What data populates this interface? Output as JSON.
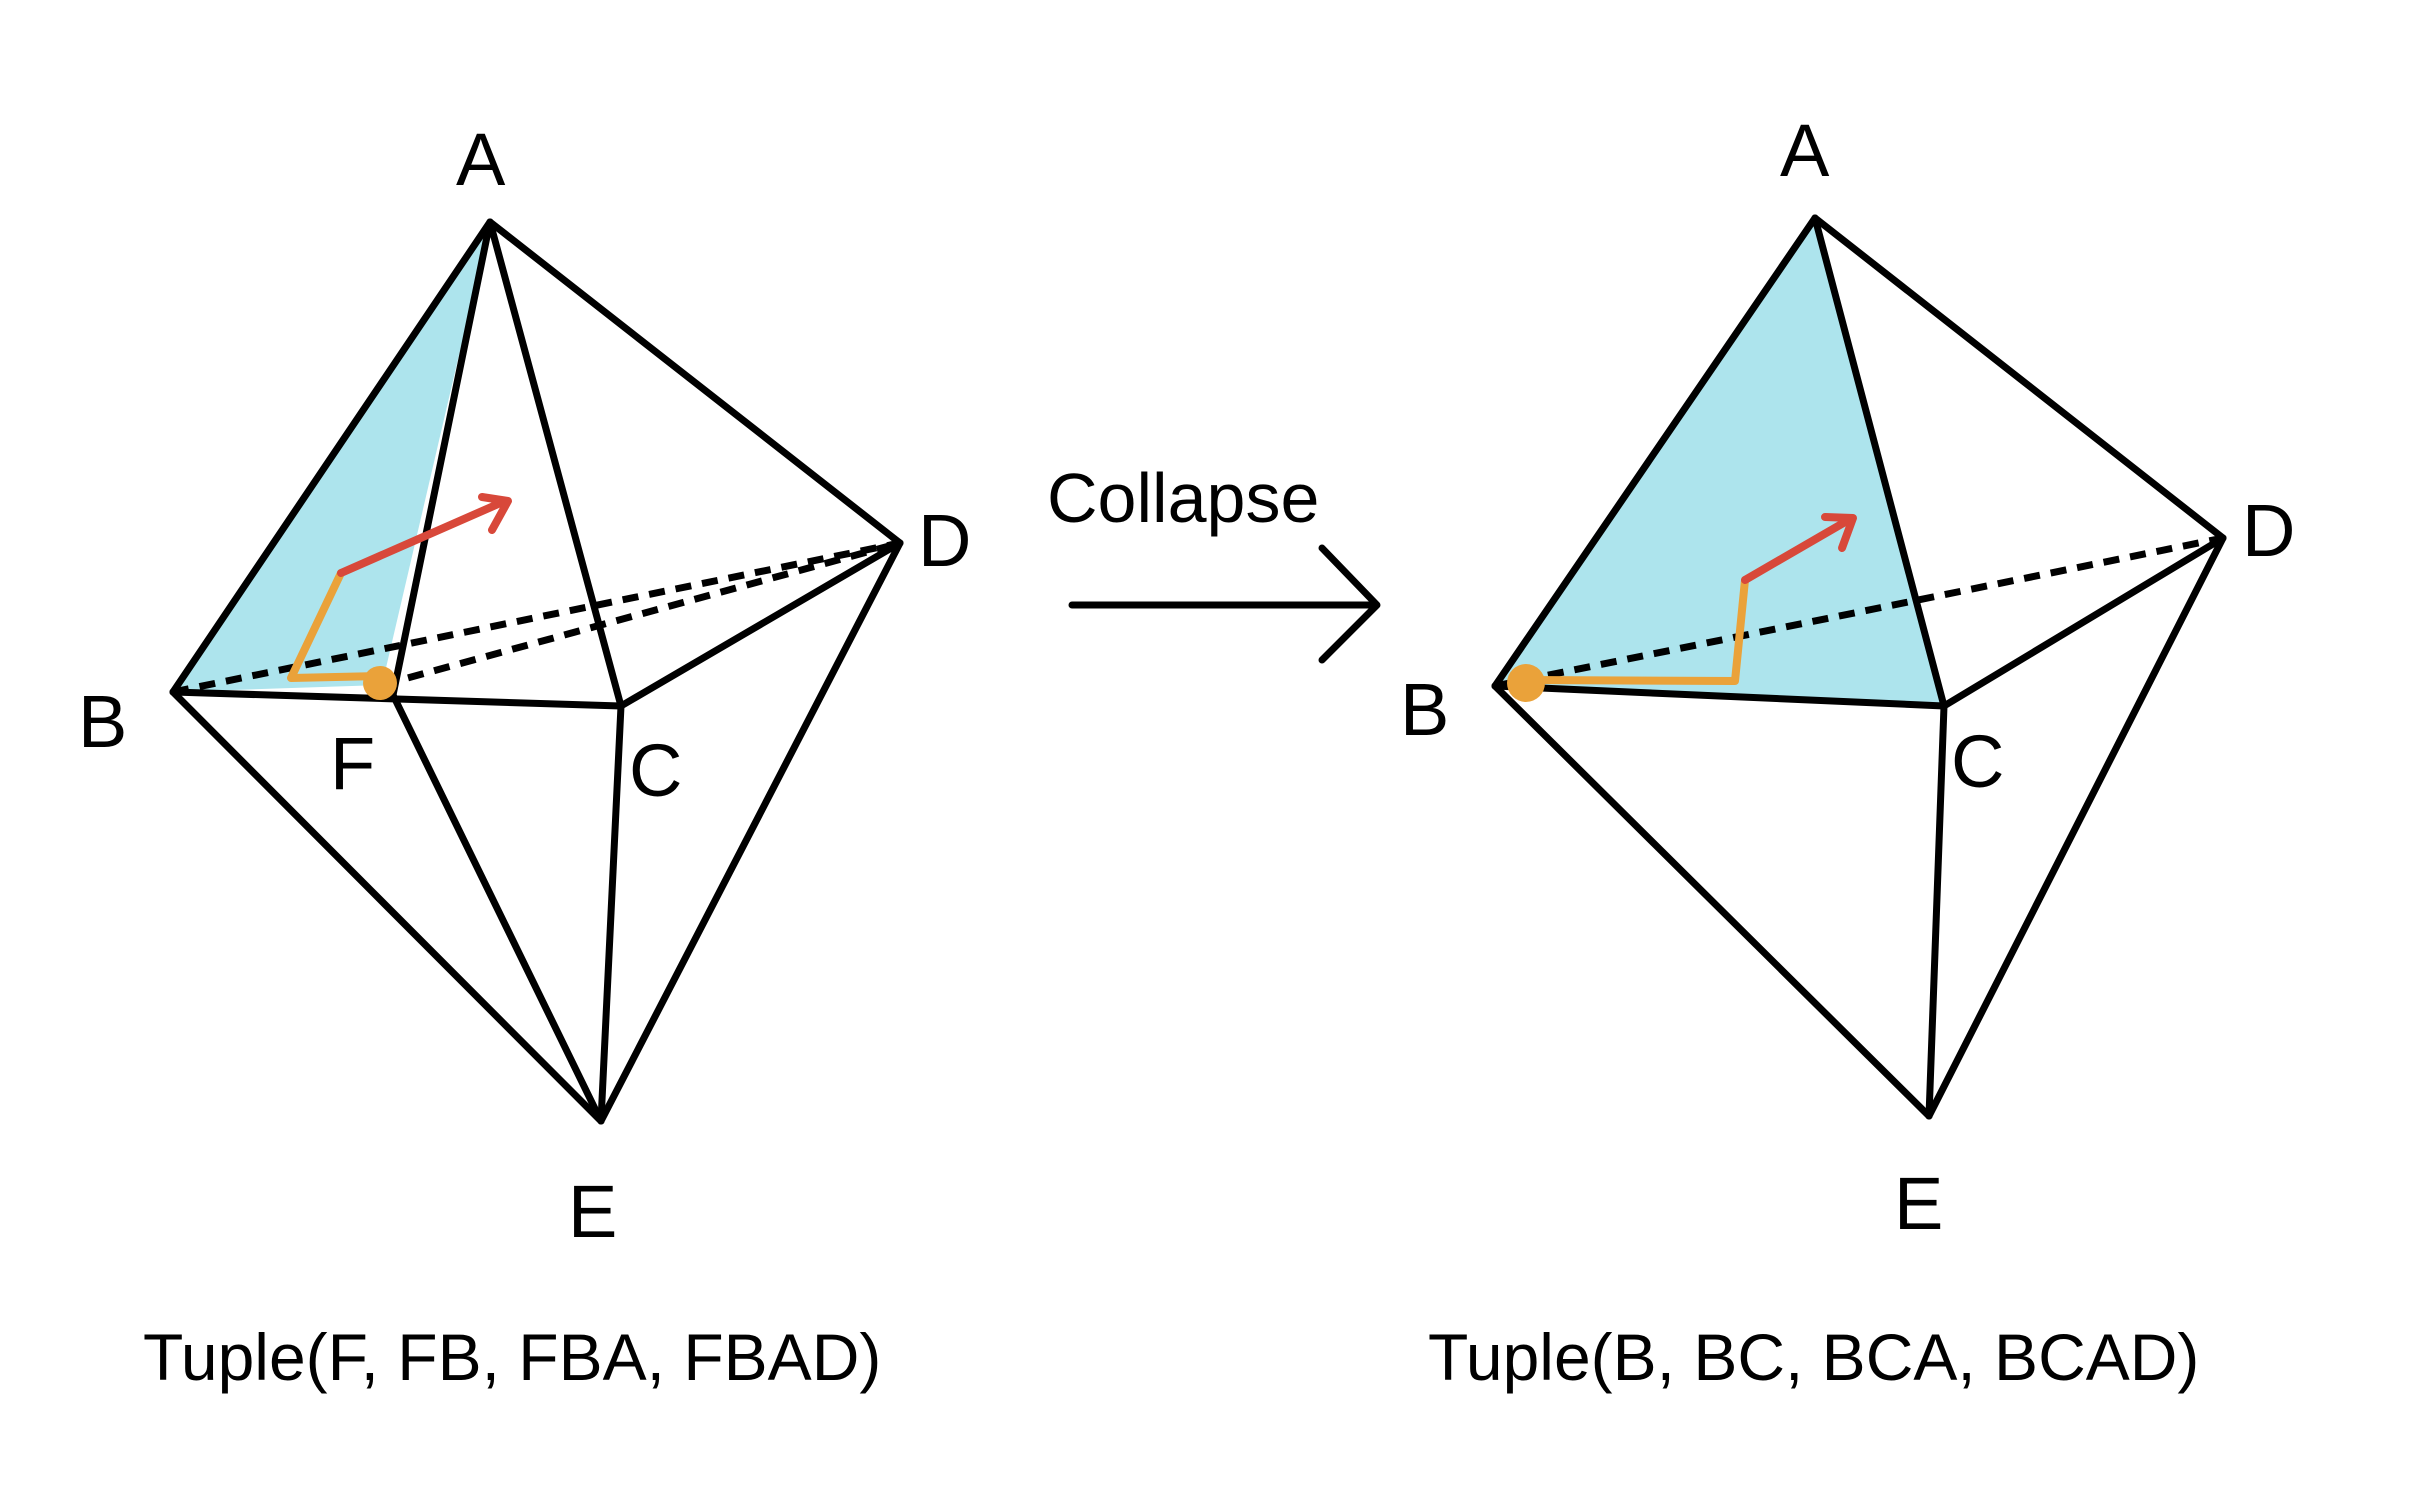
{
  "diagram": {
    "colors": {
      "face_fill": "#ade4ed",
      "edge": "#000000",
      "path_orange": "#eaa23a",
      "arrow_red": "#d8483a",
      "dot": "#eaa23a"
    },
    "left": {
      "vertices": {
        "A": "A",
        "B": "B",
        "C": "C",
        "D": "D",
        "E": "E",
        "F": "F"
      },
      "caption": "Tuple(F, FB, FBA, FBAD)"
    },
    "transition": {
      "label": "Collapse"
    },
    "right": {
      "vertices": {
        "A": "A",
        "B": "B",
        "C": "C",
        "D": "D",
        "E": "E"
      },
      "caption": "Tuple(B, BC, BCA, BCAD)"
    }
  }
}
